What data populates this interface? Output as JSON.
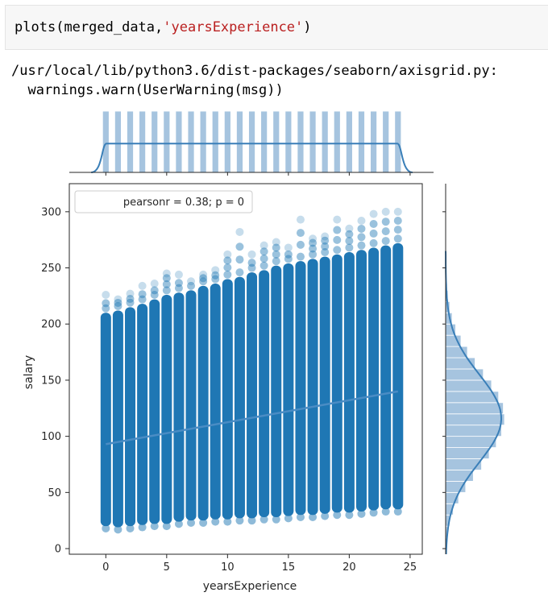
{
  "code_cell": {
    "func": "plots",
    "open_paren": "(",
    "arg": "merged_data",
    "comma": ",",
    "string_arg": "'yearsExperience'",
    "close_paren": ")"
  },
  "output": {
    "line1": "/usr/local/lib/python3.6/dist-packages/seaborn/axisgrid.py:",
    "line2": "  warnings.warn(UserWarning(msg))"
  },
  "colors": {
    "point": "#1f77b4",
    "hist_fill": "#a6c4df",
    "kde_line": "#3a7fb8",
    "axis": "#262626"
  },
  "chart_data": {
    "type": "scatter",
    "kind": "jointplot",
    "xlabel": "yearsExperience",
    "ylabel": "salary",
    "xlim": [
      -3,
      26
    ],
    "ylim": [
      -5,
      325
    ],
    "x_ticks": [
      0,
      5,
      10,
      15,
      20,
      25
    ],
    "y_ticks": [
      0,
      50,
      100,
      150,
      200,
      250,
      300
    ],
    "legend": {
      "text": "pearsonr = 0.38; p = 0",
      "placement": "top-left"
    },
    "scatter_columns": [
      {
        "x": 0,
        "dense_min": 20,
        "dense_max": 210,
        "max": 226
      },
      {
        "x": 1,
        "dense_min": 19,
        "dense_max": 212,
        "max": 222
      },
      {
        "x": 2,
        "dense_min": 20,
        "dense_max": 215,
        "max": 227
      },
      {
        "x": 3,
        "dense_min": 21,
        "dense_max": 218,
        "max": 234
      },
      {
        "x": 4,
        "dense_min": 22,
        "dense_max": 222,
        "max": 236
      },
      {
        "x": 5,
        "dense_min": 22,
        "dense_max": 226,
        "max": 245
      },
      {
        "x": 6,
        "dense_min": 24,
        "dense_max": 228,
        "max": 244
      },
      {
        "x": 7,
        "dense_min": 25,
        "dense_max": 230,
        "max": 238
      },
      {
        "x": 8,
        "dense_min": 25,
        "dense_max": 234,
        "max": 244
      },
      {
        "x": 9,
        "dense_min": 26,
        "dense_max": 236,
        "max": 248
      },
      {
        "x": 10,
        "dense_min": 26,
        "dense_max": 240,
        "max": 262
      },
      {
        "x": 11,
        "dense_min": 27,
        "dense_max": 242,
        "max": 282
      },
      {
        "x": 12,
        "dense_min": 27,
        "dense_max": 246,
        "max": 262
      },
      {
        "x": 13,
        "dense_min": 28,
        "dense_max": 248,
        "max": 270
      },
      {
        "x": 14,
        "dense_min": 28,
        "dense_max": 252,
        "max": 273
      },
      {
        "x": 15,
        "dense_min": 29,
        "dense_max": 254,
        "max": 268
      },
      {
        "x": 16,
        "dense_min": 30,
        "dense_max": 256,
        "max": 293
      },
      {
        "x": 17,
        "dense_min": 30,
        "dense_max": 258,
        "max": 276
      },
      {
        "x": 18,
        "dense_min": 31,
        "dense_max": 260,
        "max": 278
      },
      {
        "x": 19,
        "dense_min": 32,
        "dense_max": 262,
        "max": 293
      },
      {
        "x": 20,
        "dense_min": 32,
        "dense_max": 264,
        "max": 285
      },
      {
        "x": 21,
        "dense_min": 33,
        "dense_max": 266,
        "max": 292
      },
      {
        "x": 22,
        "dense_min": 34,
        "dense_max": 268,
        "max": 298
      },
      {
        "x": 23,
        "dense_min": 35,
        "dense_max": 270,
        "max": 300
      },
      {
        "x": 24,
        "dense_min": 35,
        "dense_max": 272,
        "max": 300
      }
    ],
    "regression_line": {
      "x": [
        0,
        24
      ],
      "y": [
        93,
        140
      ]
    },
    "top_marginal": {
      "type": "hist+kde",
      "bar_centers": [
        0,
        1,
        2,
        3,
        4,
        5,
        6,
        7,
        8,
        9,
        10,
        11,
        12,
        13,
        14,
        15,
        16,
        17,
        18,
        19,
        20,
        21,
        22,
        23,
        24
      ],
      "bar_heights": [
        1,
        1,
        1,
        1,
        1,
        1,
        1,
        1,
        1,
        1,
        1,
        1,
        1,
        1,
        1,
        1,
        1,
        1,
        1,
        1,
        1,
        1,
        1,
        1,
        1
      ],
      "kde_level": 0.47
    },
    "right_marginal": {
      "type": "hist+kde",
      "y": [
        15,
        25,
        35,
        45,
        55,
        65,
        75,
        85,
        95,
        105,
        115,
        125,
        135,
        145,
        155,
        165,
        175,
        185,
        195,
        205,
        215,
        225,
        235,
        245,
        255
      ],
      "density": [
        0.03,
        0.07,
        0.13,
        0.22,
        0.34,
        0.47,
        0.61,
        0.74,
        0.86,
        0.95,
        1.0,
        0.98,
        0.9,
        0.78,
        0.64,
        0.5,
        0.37,
        0.26,
        0.17,
        0.11,
        0.07,
        0.04,
        0.02,
        0.01,
        0.005
      ],
      "kde_mean": 116,
      "kde_sd": 39
    }
  }
}
